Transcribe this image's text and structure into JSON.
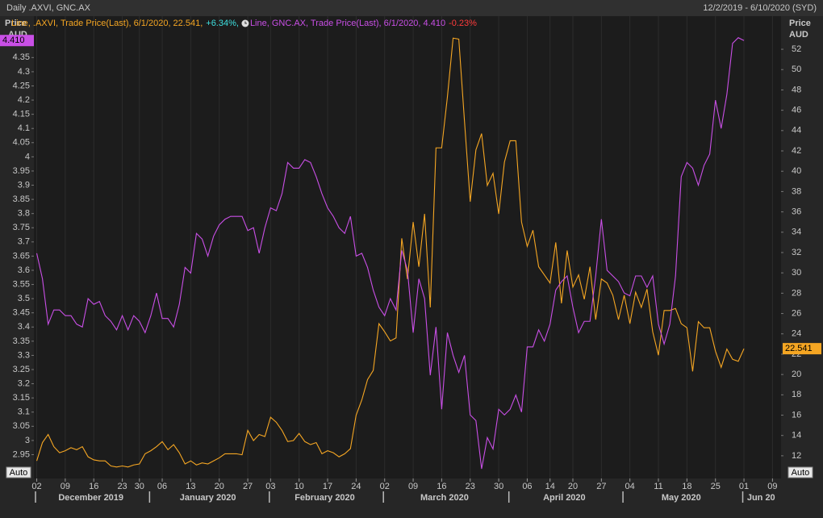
{
  "chart_data": {
    "type": "line",
    "title": "Daily .AXVI, GNC.AX",
    "date_range": "12/2/2019 - 6/10/2020 (SYD)",
    "y_label_lines": [
      "Price",
      "AUD"
    ],
    "y2_label_lines": [
      "Price",
      "AUD"
    ],
    "controls": [
      "Auto",
      "Auto"
    ],
    "legend": [
      {
        "text": "Line, .AXVI, Trade Price(Last), 6/1/2020, 22.541,",
        "change": "+6.34%,",
        "text_color": "#f5a623",
        "change_color": "#3ee0e0"
      },
      {
        "text": "Line, GNC.AX, Trade Price(Last), 6/1/2020, 4.410",
        "change": "-0.23%",
        "text_color": "#c94fe6",
        "change_color": "#ff3b3b"
      }
    ],
    "months": [
      "December 2019",
      "January 2020",
      "February 2020",
      "March 2020",
      "April 2020",
      "May 2020",
      "Jun 20"
    ],
    "categories": [
      "2019-12-02",
      "2019-12-03",
      "2019-12-04",
      "2019-12-05",
      "2019-12-06",
      "2019-12-09",
      "2019-12-10",
      "2019-12-11",
      "2019-12-12",
      "2019-12-13",
      "2019-12-16",
      "2019-12-17",
      "2019-12-18",
      "2019-12-19",
      "2019-12-20",
      "2019-12-23",
      "2019-12-24",
      "2019-12-27",
      "2019-12-30",
      "2019-12-31",
      "2020-01-02",
      "2020-01-03",
      "2020-01-06",
      "2020-01-07",
      "2020-01-08",
      "2020-01-09",
      "2020-01-10",
      "2020-01-13",
      "2020-01-14",
      "2020-01-15",
      "2020-01-16",
      "2020-01-17",
      "2020-01-20",
      "2020-01-21",
      "2020-01-22",
      "2020-01-23",
      "2020-01-24",
      "2020-01-28",
      "2020-01-29",
      "2020-01-30",
      "2020-01-31",
      "2020-02-03",
      "2020-02-04",
      "2020-02-05",
      "2020-02-06",
      "2020-02-07",
      "2020-02-10",
      "2020-02-11",
      "2020-02-12",
      "2020-02-13",
      "2020-02-14",
      "2020-02-17",
      "2020-02-18",
      "2020-02-19",
      "2020-02-20",
      "2020-02-21",
      "2020-02-24",
      "2020-02-25",
      "2020-02-26",
      "2020-02-27",
      "2020-02-28",
      "2020-03-02",
      "2020-03-03",
      "2020-03-04",
      "2020-03-05",
      "2020-03-06",
      "2020-03-09",
      "2020-03-10",
      "2020-03-11",
      "2020-03-12",
      "2020-03-13",
      "2020-03-16",
      "2020-03-17",
      "2020-03-18",
      "2020-03-19",
      "2020-03-20",
      "2020-03-23",
      "2020-03-24",
      "2020-03-25",
      "2020-03-26",
      "2020-03-27",
      "2020-03-30",
      "2020-03-31",
      "2020-04-01",
      "2020-04-02",
      "2020-04-03",
      "2020-04-06",
      "2020-04-07",
      "2020-04-08",
      "2020-04-09",
      "2020-04-14",
      "2020-04-15",
      "2020-04-16",
      "2020-04-17",
      "2020-04-20",
      "2020-04-21",
      "2020-04-22",
      "2020-04-23",
      "2020-04-24",
      "2020-04-27",
      "2020-04-28",
      "2020-04-29",
      "2020-04-30",
      "2020-05-01",
      "2020-05-04",
      "2020-05-05",
      "2020-05-06",
      "2020-05-07",
      "2020-05-08",
      "2020-05-11",
      "2020-05-12",
      "2020-05-13",
      "2020-05-14",
      "2020-05-15",
      "2020-05-18",
      "2020-05-19",
      "2020-05-20",
      "2020-05-21",
      "2020-05-22",
      "2020-05-25",
      "2020-05-26",
      "2020-05-27",
      "2020-05-28",
      "2020-05-29",
      "2020-06-01",
      "2020-06-02",
      "2020-06-03",
      "2020-06-04",
      "2020-06-05",
      "2020-06-09",
      "2020-06-10"
    ],
    "xticks": [
      {
        "value": "2019-12-02",
        "label": "02"
      },
      {
        "value": "2019-12-09",
        "label": "09"
      },
      {
        "value": "2019-12-16",
        "label": "16"
      },
      {
        "value": "2019-12-23",
        "label": "23"
      },
      {
        "value": "2019-12-30",
        "label": "30"
      },
      {
        "value": "2020-01-06",
        "label": "06"
      },
      {
        "value": "2020-01-13",
        "label": "13"
      },
      {
        "value": "2020-01-20",
        "label": "20"
      },
      {
        "value": "2020-01-28",
        "label": "27"
      },
      {
        "value": "2020-02-03",
        "label": "03"
      },
      {
        "value": "2020-02-10",
        "label": "10"
      },
      {
        "value": "2020-02-17",
        "label": "17"
      },
      {
        "value": "2020-02-24",
        "label": "24"
      },
      {
        "value": "2020-03-02",
        "label": "02"
      },
      {
        "value": "2020-03-09",
        "label": "09"
      },
      {
        "value": "2020-03-16",
        "label": "16"
      },
      {
        "value": "2020-03-23",
        "label": "23"
      },
      {
        "value": "2020-03-30",
        "label": "30"
      },
      {
        "value": "2020-04-06",
        "label": "06"
      },
      {
        "value": "2020-04-14",
        "label": "14"
      },
      {
        "value": "2020-04-20",
        "label": "20"
      },
      {
        "value": "2020-04-27",
        "label": "27"
      },
      {
        "value": "2020-05-04",
        "label": "04"
      },
      {
        "value": "2020-05-11",
        "label": "11"
      },
      {
        "value": "2020-05-18",
        "label": "18"
      },
      {
        "value": "2020-05-25",
        "label": "25"
      },
      {
        "value": "2020-06-01",
        "label": "01"
      },
      {
        "value": "2020-06-09",
        "label": "09"
      }
    ],
    "ylim": [
      2.866,
      4.496
    ],
    "yticks": [
      2.95,
      3,
      3.05,
      3.1,
      3.15,
      3.2,
      3.25,
      3.3,
      3.35,
      3.4,
      3.45,
      3.5,
      3.55,
      3.6,
      3.65,
      3.7,
      3.75,
      3.8,
      3.85,
      3.9,
      3.95,
      4,
      4.05,
      4.1,
      4.15,
      4.2,
      4.25,
      4.3,
      4.35,
      4.4
    ],
    "y2lim": [
      9.77,
      55.26
    ],
    "y2ticks": [
      12,
      14,
      16,
      18,
      20,
      22,
      24,
      26,
      28,
      30,
      32,
      34,
      36,
      38,
      40,
      42,
      44,
      46,
      48,
      50,
      52
    ],
    "series": [
      {
        "name": ".AXVI",
        "color": "#f5a623",
        "axis": "y2",
        "last_label": "22.541",
        "values": [
          11.5,
          13.3,
          14.1,
          12.9,
          12.3,
          12.5,
          12.8,
          12.6,
          12.9,
          11.9,
          11.6,
          11.5,
          11.5,
          11.0,
          10.9,
          11.0,
          10.9,
          11.1,
          11.2,
          12.2,
          12.5,
          12.9,
          13.4,
          12.6,
          13.1,
          12.3,
          11.2,
          11.5,
          11.1,
          11.3,
          11.2,
          11.5,
          11.8,
          12.2,
          12.2,
          12.2,
          12.1,
          14.5,
          13.5,
          14.1,
          13.9,
          15.8,
          15.3,
          14.5,
          13.4,
          13.5,
          14.2,
          13.4,
          13.1,
          13.3,
          12.2,
          12.5,
          12.3,
          11.9,
          12.2,
          12.7,
          16.0,
          17.5,
          19.5,
          20.4,
          25.0,
          24.2,
          23.3,
          23.6,
          33.4,
          29.4,
          35.0,
          30.6,
          35.8,
          26.6,
          42.3,
          42.3,
          47.3,
          53.1,
          53.0,
          44.9,
          37.0,
          42.1,
          43.7,
          38.6,
          39.8,
          35.8,
          40.9,
          43.0,
          43.0,
          35.0,
          32.6,
          34.2,
          30.6,
          29.8,
          29.0,
          33.0,
          27.0,
          32.2,
          28.6,
          29.8,
          27.4,
          30.6,
          25.4,
          29.4,
          29.0,
          27.8,
          25.4,
          27.8,
          25.0,
          28.1,
          26.6,
          28.4,
          24.2,
          21.9,
          26.3,
          26.3,
          26.5,
          25.0,
          24.6,
          20.3,
          25.2,
          24.6,
          24.6,
          22.3,
          20.7,
          22.5,
          21.5,
          21.3,
          22.541,
          null,
          null,
          null,
          null,
          null,
          null
        ]
      },
      {
        "name": "GNC.AX",
        "color": "#c94fe6",
        "axis": "y",
        "last_label": "4.410",
        "values": [
          3.66,
          3.57,
          3.41,
          3.46,
          3.46,
          3.44,
          3.44,
          3.41,
          3.4,
          3.5,
          3.48,
          3.49,
          3.44,
          3.42,
          3.39,
          3.44,
          3.39,
          3.44,
          3.42,
          3.38,
          3.44,
          3.52,
          3.43,
          3.43,
          3.4,
          3.48,
          3.61,
          3.59,
          3.73,
          3.71,
          3.65,
          3.72,
          3.76,
          3.78,
          3.79,
          3.79,
          3.79,
          3.74,
          3.75,
          3.66,
          3.75,
          3.82,
          3.81,
          3.87,
          3.98,
          3.96,
          3.96,
          3.99,
          3.98,
          3.93,
          3.87,
          3.82,
          3.79,
          3.75,
          3.73,
          3.79,
          3.65,
          3.66,
          3.61,
          3.53,
          3.47,
          3.44,
          3.5,
          3.46,
          3.67,
          3.6,
          3.38,
          3.57,
          3.5,
          3.23,
          3.4,
          3.11,
          3.38,
          3.3,
          3.24,
          3.3,
          3.09,
          3.07,
          2.9,
          3.01,
          2.97,
          3.11,
          3.09,
          3.11,
          3.16,
          3.1,
          3.33,
          3.33,
          3.39,
          3.35,
          3.41,
          3.53,
          3.56,
          3.58,
          3.47,
          3.38,
          3.42,
          3.42,
          3.58,
          3.78,
          3.6,
          3.58,
          3.56,
          3.52,
          3.51,
          3.58,
          3.58,
          3.54,
          3.58,
          3.41,
          3.34,
          3.41,
          3.58,
          3.93,
          3.98,
          3.96,
          3.9,
          3.97,
          4.01,
          4.2,
          4.1,
          4.22,
          4.4,
          4.42,
          4.41,
          null,
          null,
          null,
          null,
          null,
          null
        ]
      }
    ]
  }
}
